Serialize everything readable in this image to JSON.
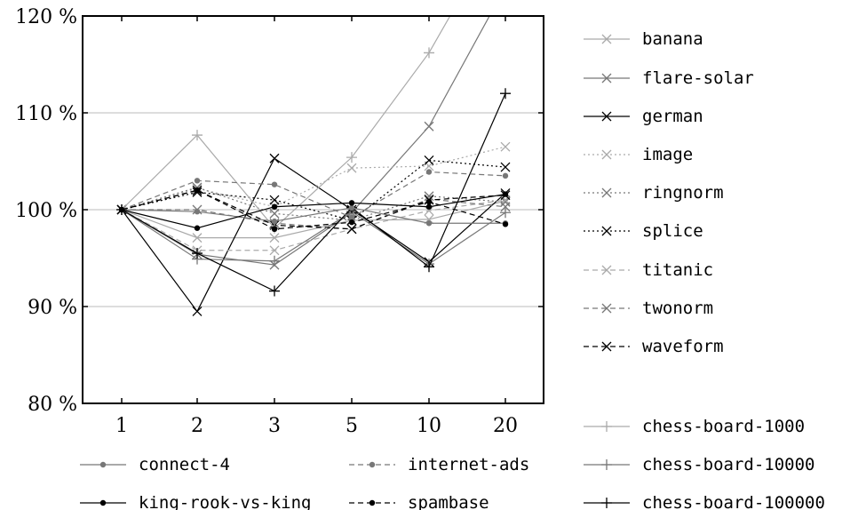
{
  "chart_data": {
    "type": "line",
    "x": [
      1,
      2,
      3,
      5,
      10,
      20
    ],
    "x_tick_labels": [
      "1",
      "2",
      "3",
      "5",
      "10",
      "20"
    ],
    "ylim": [
      80,
      120
    ],
    "y_ticks": [
      80,
      90,
      100,
      110,
      120
    ],
    "y_tick_labels": [
      "80 %",
      "90 %",
      "100 %",
      "110 %",
      "120 %"
    ],
    "grid": "horizontal",
    "legend_placement": "right-and-bottom",
    "series": [
      {
        "name": "banana",
        "color": "#aaaaaa",
        "dash": "",
        "marker": "x",
        "values": [
          100,
          97.1,
          97.1,
          98.9,
          99.0,
          100.9
        ]
      },
      {
        "name": "flare-solar",
        "color": "#777777",
        "dash": "",
        "marker": "x",
        "values": [
          100,
          95.4,
          94.3,
          99.7,
          108.6,
          123.0
        ]
      },
      {
        "name": "german",
        "color": "#000000",
        "dash": "",
        "marker": "x",
        "values": [
          100,
          89.5,
          105.3,
          100.0,
          94.6,
          101.7
        ]
      },
      {
        "name": "image",
        "color": "#aaaaaa",
        "dash": "2,3",
        "marker": "x",
        "values": [
          100,
          102.2,
          100.3,
          104.3,
          104.5,
          106.5
        ]
      },
      {
        "name": "ringnorm",
        "color": "#777777",
        "dash": "2,3",
        "marker": "x",
        "values": [
          100,
          102.3,
          99.6,
          98.9,
          101.4,
          100.8
        ]
      },
      {
        "name": "splice",
        "color": "#000000",
        "dash": "2,3",
        "marker": "x",
        "values": [
          100,
          101.8,
          101.0,
          98.9,
          105.1,
          104.4
        ]
      },
      {
        "name": "titanic",
        "color": "#aaaaaa",
        "dash": "6,4",
        "marker": "x",
        "values": [
          100,
          95.8,
          95.8,
          98.0,
          99.9,
          101.0
        ]
      },
      {
        "name": "twonorm",
        "color": "#777777",
        "dash": "6,4",
        "marker": "x",
        "values": [
          100,
          100.0,
          98.6,
          98.0,
          101.1,
          100.3
        ]
      },
      {
        "name": "waveform",
        "color": "#000000",
        "dash": "6,4",
        "marker": "x",
        "values": [
          100,
          102.0,
          98.4,
          98.0,
          101.0,
          101.5
        ]
      },
      {
        "name": "chess-board-1000",
        "color": "#aaaaaa",
        "dash": "",
        "marker": "+",
        "values": [
          100,
          107.7,
          98.1,
          105.4,
          116.2,
          130.0
        ]
      },
      {
        "name": "chess-board-10000",
        "color": "#777777",
        "dash": "",
        "marker": "+",
        "values": [
          100,
          94.9,
          94.7,
          99.8,
          94.4,
          99.7
        ]
      },
      {
        "name": "chess-board-100000",
        "color": "#000000",
        "dash": "",
        "marker": "+",
        "values": [
          100,
          95.5,
          91.6,
          100.2,
          94.1,
          112.0
        ]
      },
      {
        "name": "connect-4",
        "color": "#777777",
        "dash": "",
        "marker": "dot",
        "values": [
          100,
          99.8,
          98.8,
          100.2,
          98.6,
          98.6
        ]
      },
      {
        "name": "internet-ads",
        "color": "#777777",
        "dash": "6,4",
        "marker": "dot",
        "values": [
          100,
          103.0,
          102.6,
          99.2,
          103.9,
          103.5
        ]
      },
      {
        "name": "king-rook-vs-king",
        "color": "#000000",
        "dash": "",
        "marker": "dot",
        "values": [
          100,
          98.1,
          100.3,
          100.7,
          100.3,
          101.6
        ]
      },
      {
        "name": "spambase",
        "color": "#000000",
        "dash": "6,4",
        "marker": "dot",
        "values": [
          100,
          102.0,
          98.0,
          98.7,
          100.8,
          98.5
        ]
      }
    ]
  }
}
